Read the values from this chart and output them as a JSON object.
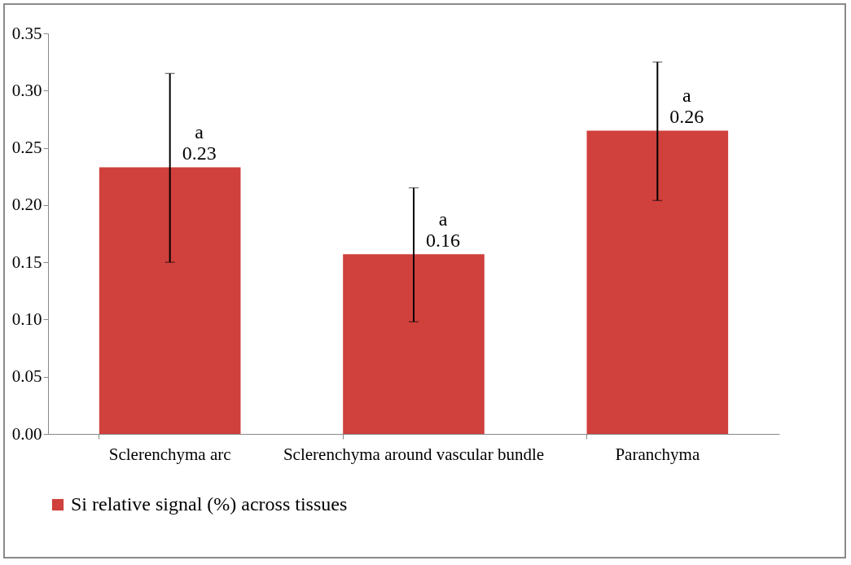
{
  "chart_data": {
    "type": "bar",
    "categories": [
      "Sclerenchyma arc",
      "Sclerenchyma around vascular bundle",
      "Paranchyma"
    ],
    "series": [
      {
        "name": "Si relative signal (%) across tissues",
        "color": "#d0403c",
        "values": [
          0.233,
          0.157,
          0.265
        ],
        "errors": [
          [
            0.15,
            0.315
          ],
          [
            0.098,
            0.215
          ],
          [
            0.204,
            0.325
          ]
        ],
        "value_labels": [
          "0.23",
          "0.16",
          "0.26"
        ]
      }
    ],
    "annotations": [
      "a",
      "a",
      "a"
    ],
    "ylim": [
      0,
      0.35
    ],
    "yticks": [
      {
        "value": 0,
        "label": "0.00"
      },
      0.05,
      {
        "value": 0.1,
        "label": "0.10"
      },
      0.15,
      {
        "value": 0.2,
        "label": "0.20"
      },
      0.25,
      {
        "value": 0.3,
        "label": "0.30"
      },
      0.35
    ],
    "grid": false,
    "legend": "bottom"
  }
}
